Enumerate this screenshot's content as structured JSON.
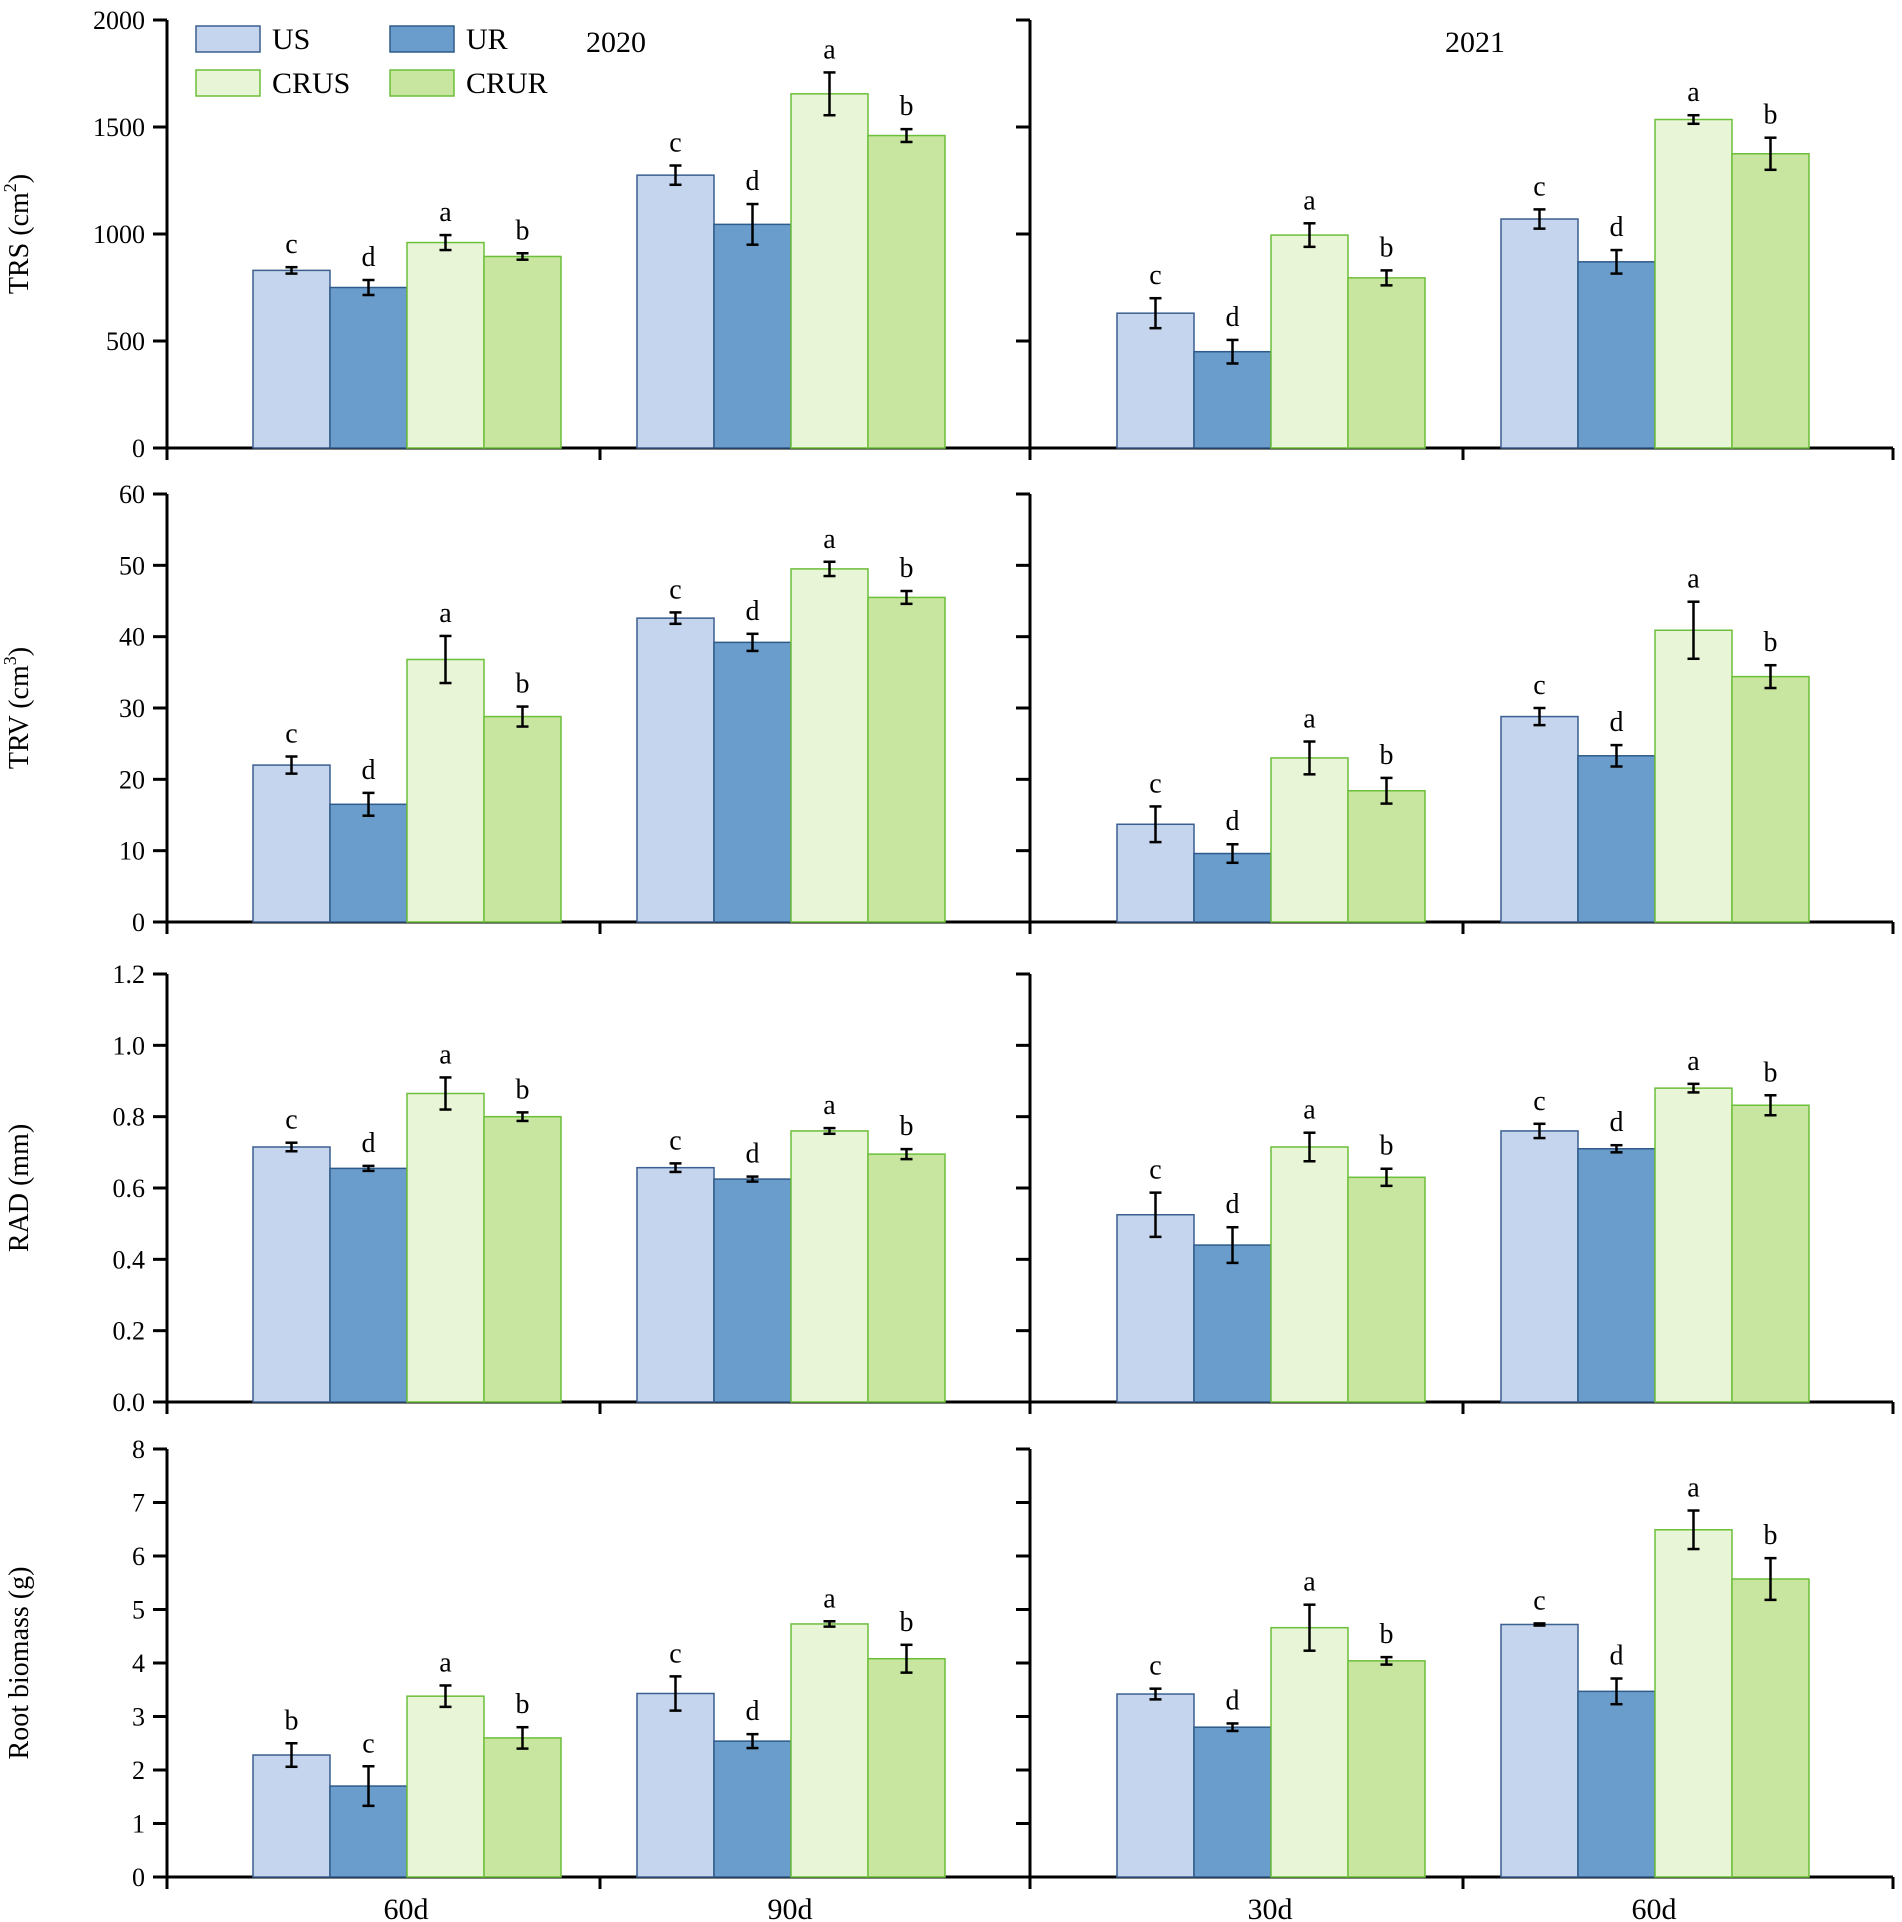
{
  "legend": [
    {
      "key": "US",
      "label": "US",
      "fill": "#c5d5ee",
      "stroke": "#3b5f8f"
    },
    {
      "key": "UR",
      "label": "UR",
      "fill": "#6a9ccc",
      "stroke": "#2f5b8a"
    },
    {
      "key": "CRUS",
      "label": "CRUS",
      "fill": "#e8f5d6",
      "stroke": "#6cbf3a"
    },
    {
      "key": "CRUR",
      "label": "CRUR",
      "fill": "#c9e6a0",
      "stroke": "#6cbf3a"
    }
  ],
  "years": [
    {
      "label": "2020",
      "categories": [
        "60d",
        "90d"
      ]
    },
    {
      "label": "2021",
      "categories": [
        "30d",
        "60d"
      ]
    }
  ],
  "chart_data": [
    {
      "type": "bar",
      "metric": "TRS",
      "ylabel": "TRS (cm2)",
      "ylabel_main": "TRS (cm",
      "ylabel_sup": "2",
      "ylabel_end": ")",
      "ylim": [
        0,
        2000
      ],
      "yticks": [
        0,
        500,
        1000,
        1500,
        2000
      ],
      "ytick_labels": [
        "0",
        "500",
        "1000",
        "1500",
        "2000"
      ],
      "groups": [
        {
          "year": "2020",
          "category": "60d",
          "values": [
            830,
            750,
            960,
            895
          ],
          "errors": [
            15,
            35,
            35,
            15
          ],
          "letters": [
            "c",
            "d",
            "a",
            "b"
          ]
        },
        {
          "year": "2020",
          "category": "90d",
          "values": [
            1275,
            1045,
            1655,
            1460
          ],
          "errors": [
            45,
            95,
            100,
            30
          ],
          "letters": [
            "c",
            "d",
            "a",
            "b"
          ]
        },
        {
          "year": "2021",
          "category": "30d",
          "values": [
            630,
            450,
            995,
            795
          ],
          "errors": [
            70,
            55,
            55,
            35
          ],
          "letters": [
            "c",
            "d",
            "a",
            "b"
          ]
        },
        {
          "year": "2021",
          "category": "60d",
          "values": [
            1070,
            870,
            1535,
            1375
          ],
          "errors": [
            45,
            55,
            20,
            75
          ],
          "letters": [
            "c",
            "d",
            "a",
            "b"
          ]
        }
      ]
    },
    {
      "type": "bar",
      "metric": "TRV",
      "ylabel": "TRV (cm3)",
      "ylabel_main": "TRV (cm",
      "ylabel_sup": "3",
      "ylabel_end": ")",
      "ylim": [
        0,
        60
      ],
      "yticks": [
        0,
        10,
        20,
        30,
        40,
        50,
        60
      ],
      "ytick_labels": [
        "0",
        "10",
        "20",
        "30",
        "40",
        "50",
        "60"
      ],
      "groups": [
        {
          "year": "2020",
          "category": "60d",
          "values": [
            22,
            16.5,
            36.8,
            28.8
          ],
          "errors": [
            1.2,
            1.6,
            3.3,
            1.4
          ],
          "letters": [
            "c",
            "d",
            "a",
            "b"
          ]
        },
        {
          "year": "2020",
          "category": "90d",
          "values": [
            42.6,
            39.2,
            49.5,
            45.5
          ],
          "errors": [
            0.8,
            1.2,
            1.0,
            0.9
          ],
          "letters": [
            "c",
            "d",
            "a",
            "b"
          ]
        },
        {
          "year": "2021",
          "category": "30d",
          "values": [
            13.7,
            9.6,
            23.0,
            18.4
          ],
          "errors": [
            2.5,
            1.3,
            2.3,
            1.8
          ],
          "letters": [
            "c",
            "d",
            "a",
            "b"
          ]
        },
        {
          "year": "2021",
          "category": "60d",
          "values": [
            28.8,
            23.3,
            40.9,
            34.4
          ],
          "errors": [
            1.2,
            1.5,
            4.0,
            1.6
          ],
          "letters": [
            "c",
            "d",
            "a",
            "b"
          ]
        }
      ]
    },
    {
      "type": "bar",
      "metric": "RAD",
      "ylabel": "RAD (mm)",
      "ylim": [
        0,
        1.2
      ],
      "yticks": [
        0,
        0.2,
        0.4,
        0.6,
        0.8,
        1.0,
        1.2
      ],
      "ytick_labels": [
        "0.0",
        "0.2",
        "0.4",
        "0.6",
        "0.8",
        "1.0",
        "1.2"
      ],
      "groups": [
        {
          "year": "2020",
          "category": "60d",
          "values": [
            0.715,
            0.655,
            0.865,
            0.8
          ],
          "errors": [
            0.012,
            0.007,
            0.045,
            0.012
          ],
          "letters": [
            "c",
            "d",
            "a",
            "b"
          ]
        },
        {
          "year": "2020",
          "category": "90d",
          "values": [
            0.657,
            0.625,
            0.76,
            0.695
          ],
          "errors": [
            0.012,
            0.007,
            0.008,
            0.014
          ],
          "letters": [
            "c",
            "d",
            "a",
            "b"
          ]
        },
        {
          "year": "2021",
          "category": "30d",
          "values": [
            0.525,
            0.44,
            0.715,
            0.63
          ],
          "errors": [
            0.062,
            0.05,
            0.04,
            0.024
          ],
          "letters": [
            "c",
            "d",
            "a",
            "b"
          ]
        },
        {
          "year": "2021",
          "category": "60d",
          "values": [
            0.76,
            0.71,
            0.88,
            0.832
          ],
          "errors": [
            0.02,
            0.01,
            0.012,
            0.028
          ],
          "letters": [
            "c",
            "d",
            "a",
            "b"
          ]
        }
      ]
    },
    {
      "type": "bar",
      "metric": "Root biomass",
      "ylabel": "Root biomass (g)",
      "ylim": [
        0,
        8
      ],
      "yticks": [
        0,
        1,
        2,
        3,
        4,
        5,
        6,
        7,
        8
      ],
      "ytick_labels": [
        "0",
        "1",
        "2",
        "3",
        "4",
        "5",
        "6",
        "7",
        "8"
      ],
      "groups": [
        {
          "year": "2020",
          "category": "60d",
          "values": [
            2.28,
            1.7,
            3.38,
            2.6
          ],
          "errors": [
            0.22,
            0.37,
            0.2,
            0.2
          ],
          "letters": [
            "b",
            "c",
            "a",
            "b"
          ]
        },
        {
          "year": "2020",
          "category": "90d",
          "values": [
            3.43,
            2.54,
            4.73,
            4.08
          ],
          "errors": [
            0.32,
            0.13,
            0.05,
            0.26
          ],
          "letters": [
            "c",
            "d",
            "a",
            "b"
          ]
        },
        {
          "year": "2021",
          "category": "30d",
          "values": [
            3.42,
            2.8,
            4.66,
            4.04
          ],
          "errors": [
            0.1,
            0.07,
            0.43,
            0.07
          ],
          "letters": [
            "c",
            "d",
            "a",
            "b"
          ]
        },
        {
          "year": "2021",
          "category": "60d",
          "values": [
            4.72,
            3.47,
            6.49,
            5.57
          ],
          "errors": [
            0.02,
            0.24,
            0.36,
            0.39
          ],
          "letters": [
            "c",
            "d",
            "a",
            "b"
          ]
        }
      ]
    }
  ]
}
